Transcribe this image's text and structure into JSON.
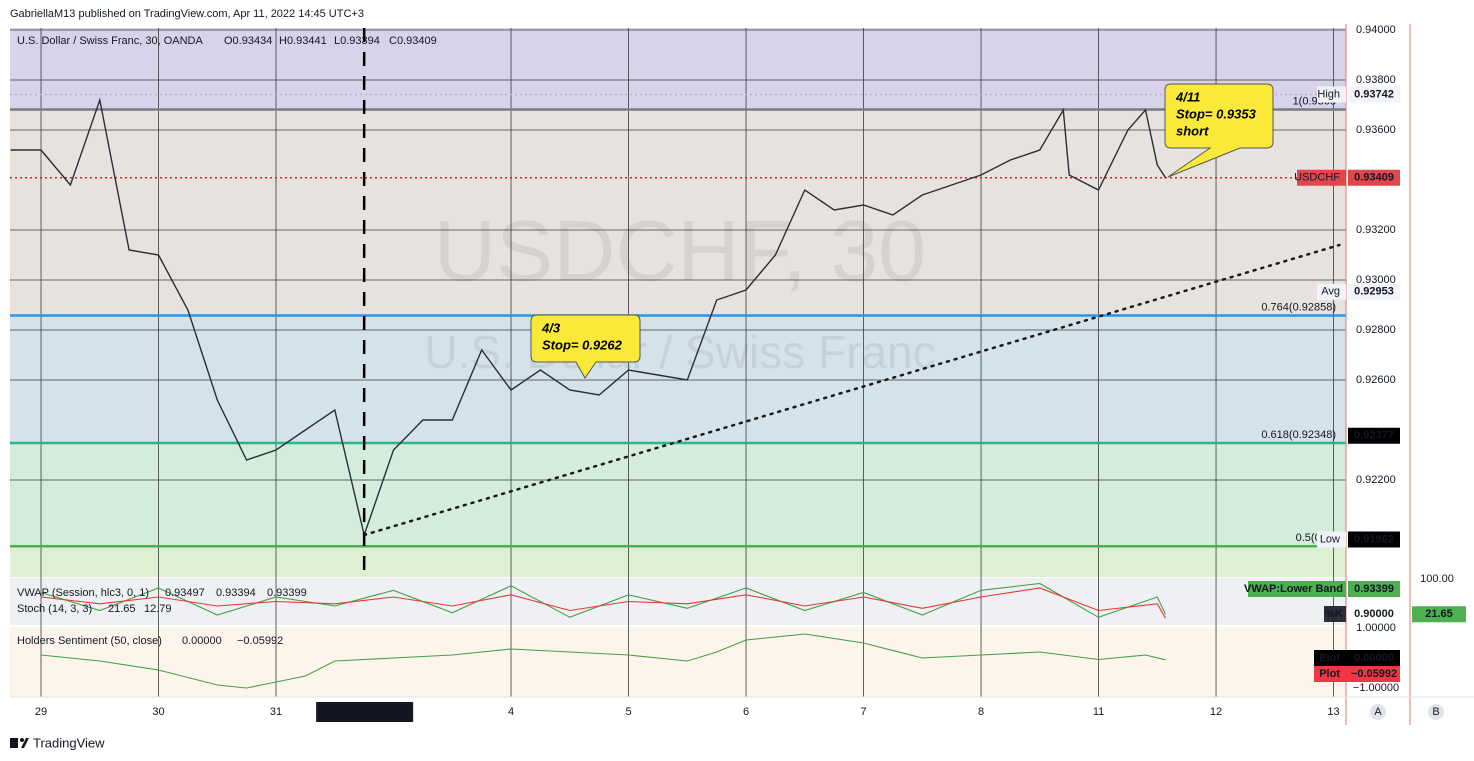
{
  "header": "GabriellaM13 published on TradingView.com, Apr 11, 2022 14:45 UTC+3",
  "footer_logo": "TradingView",
  "axis_buttons": [
    "A",
    "B"
  ],
  "chart_data": [
    {
      "type": "line",
      "title": "U.S. Dollar / Swiss Franc, 30, OANDA",
      "ohlc_labels": [
        "O0.93434",
        "H0.93441",
        "L0.93394",
        "C0.93409"
      ],
      "watermark": [
        "USDCHF, 30",
        "U.S. Dollar / Swiss Franc"
      ],
      "x": [
        -0.26,
        0,
        0.25,
        0.5,
        0.75,
        1,
        1.25,
        1.5,
        1.75,
        2,
        2.25,
        2.5,
        2.75,
        3,
        3.25,
        3.5,
        3.75,
        4,
        4.25,
        4.5,
        4.75,
        5,
        5.25,
        5.5,
        5.75,
        6,
        6.25,
        6.5,
        6.75,
        7,
        7.25,
        7.5,
        7.75,
        8,
        8.25,
        8.5,
        8.7,
        8.75,
        9,
        9.25,
        9.4,
        9.5,
        9.57
      ],
      "series": [
        {
          "name": "USDCHF",
          "color": "#2a2e39",
          "values": [
            0.9352,
            0.9352,
            0.9338,
            0.9372,
            0.9312,
            0.931,
            0.9288,
            0.9252,
            0.9228,
            0.9232,
            0.924,
            0.9248,
            0.9198,
            0.9232,
            0.9244,
            0.9244,
            0.9272,
            0.9256,
            0.9264,
            0.9256,
            0.9254,
            0.9264,
            0.9262,
            0.926,
            0.9292,
            0.9296,
            0.931,
            0.9336,
            0.9328,
            0.933,
            0.9326,
            0.9334,
            0.9338,
            0.9342,
            0.9348,
            0.9352,
            0.9368,
            0.9342,
            0.9336,
            0.936,
            0.9368,
            0.9346,
            0.93409
          ]
        }
      ],
      "xlim": [
        -0.264,
        11.106
      ],
      "xticks": [
        {
          "value": 0,
          "label": "29"
        },
        {
          "value": 1,
          "label": "30"
        },
        {
          "value": 2,
          "label": "31"
        },
        {
          "value": 4,
          "label": "4"
        },
        {
          "value": 5,
          "label": "5"
        },
        {
          "value": 6,
          "label": "6"
        },
        {
          "value": 7,
          "label": "7"
        },
        {
          "value": 8,
          "label": "8"
        },
        {
          "value": 9,
          "label": "11"
        },
        {
          "value": 10,
          "label": "12"
        },
        {
          "value": 11,
          "label": "13"
        }
      ],
      "ylim": [
        0.91812,
        0.94008
      ],
      "yticks": [
        {
          "value": 0.94,
          "label": "0.94000"
        },
        {
          "value": 0.938,
          "label": "0.93800"
        },
        {
          "value": 0.936,
          "label": "0.93600"
        },
        {
          "value": 0.932,
          "label": "0.93200"
        },
        {
          "value": 0.93,
          "label": "0.93000"
        },
        {
          "value": 0.928,
          "label": "0.92800"
        },
        {
          "value": 0.926,
          "label": "0.92600"
        },
        {
          "value": 0.922,
          "label": "0.92200"
        }
      ],
      "grid": true,
      "crosshair": {
        "x": 2.75,
        "label": "31 Mar '22  18:00"
      },
      "top_zone_color": "#d8d3ea",
      "fib_levels": [
        {
          "value": 0.93682,
          "label": "1(0.9368",
          "color": "#787b86",
          "zone_color": "#e8e2df"
        },
        {
          "value": 0.92858,
          "label": "0.764(0.92858)",
          "color": "#2196f3",
          "zone_color": "#d3e3e9"
        },
        {
          "value": 0.92348,
          "label": "0.618(0.92348)",
          "color": "#26b88a",
          "zone_color": "#d3ecdc"
        },
        {
          "value": 0.91935,
          "label": "0.5(0.91",
          "color": "#4caf50",
          "zone_color": "#ddf0d4"
        }
      ],
      "trend_line": {
        "x": [
          2.75,
          11.05
        ],
        "values": [
          0.9198,
          0.9314
        ]
      },
      "price_labels": [
        {
          "name": "High",
          "value": 0.93742,
          "bg": "#f0f3fa",
          "fg": "#131722",
          "line_color": "#b2b5be"
        },
        {
          "name": "USDCHF",
          "value": 0.93409,
          "bg": "#e0474c",
          "fg": "#ffffff",
          "line_color": "#c62828"
        },
        {
          "name": "Avg",
          "value": 0.92953,
          "bg": "#f0f3fa",
          "fg": "#131722"
        },
        {
          "value": 0.92377,
          "bg": "#000000",
          "fg": "#ffffff"
        },
        {
          "name": "Low",
          "value": 0.91962,
          "bg": "#000000",
          "fg": "#ffffff"
        }
      ],
      "annotations": [
        [
          "4/11",
          "Stop= 0.9353",
          "short"
        ],
        [
          "4/3",
          "Stop= 0.9262"
        ]
      ]
    },
    {
      "type": "line",
      "title": "Stoch (14, 3, 3)",
      "legend_values": [
        21.65,
        12.79
      ],
      "vwap": {
        "title": "VWAP (Session, hlc3, 0, 1)",
        "values": [
          0.93497,
          0.93394,
          0.93399
        ]
      },
      "x": [
        0,
        0.5,
        1,
        1.5,
        2,
        2.5,
        3,
        3.5,
        4,
        4.5,
        5,
        5.5,
        6,
        6.5,
        7,
        7.5,
        8,
        8.5,
        9,
        9.5,
        9.57
      ],
      "series": [
        {
          "color": "#43a047",
          "values": [
            70,
            30,
            80,
            20,
            60,
            40,
            75,
            25,
            85,
            15,
            65,
            35,
            80,
            30,
            70,
            20,
            75,
            90,
            15,
            60,
            21.65
          ]
        },
        {
          "color": "#e53935",
          "values": [
            60,
            45,
            60,
            40,
            50,
            45,
            60,
            40,
            65,
            30,
            50,
            45,
            65,
            40,
            60,
            35,
            60,
            80,
            30,
            45,
            12.79
          ]
        }
      ],
      "ylim": [
        0,
        100
      ],
      "yticks": [
        {
          "value": 100,
          "label": "100.00"
        }
      ],
      "axis_label": {
        "value": 21.65,
        "color": "#4caf50"
      },
      "right_labels": [
        {
          "name": "VWAP:Lower Band",
          "value": 0.93399,
          "color": "#4caf50"
        },
        {
          "name": "%K",
          "value": 0.9,
          "label": "0.90000",
          "color": "#2a2e39"
        }
      ]
    },
    {
      "type": "line",
      "title": "Holders Sentiment (50, close)",
      "legend_values": [
        {
          "value": 0,
          "label": "0.00000"
        },
        {
          "value": -0.05992,
          "label": "−0.05992"
        }
      ],
      "x": [
        0,
        0.5,
        1,
        1.5,
        1.75,
        2,
        2.25,
        2.5,
        3,
        3.5,
        4,
        4.5,
        5,
        5.5,
        5.75,
        6,
        6.5,
        7,
        7.5,
        8,
        8.5,
        9,
        9.4,
        9.57
      ],
      "series": [
        {
          "color": "#43a047",
          "values": [
            0.1,
            -0.1,
            -0.4,
            -0.9,
            -1,
            -0.8,
            -0.6,
            -0.1,
            0,
            0.1,
            0.3,
            0.2,
            0.1,
            -0.1,
            0.2,
            0.6,
            0.8,
            0.5,
            0,
            0.1,
            0.2,
            -0.05,
            0.1,
            -0.05992
          ]
        }
      ],
      "ylim": [
        -1,
        1
      ],
      "yticks": [
        {
          "value": 1,
          "label": "1.00000"
        },
        {
          "value": -1,
          "label": "−1.00000"
        }
      ],
      "plot_labels": [
        {
          "name": "Plot",
          "value": 0,
          "label": "0.00000",
          "color": "#000000"
        },
        {
          "name": "Plot",
          "value": -0.05992,
          "label": "−0.05992",
          "color": "#f23645"
        }
      ]
    }
  ]
}
